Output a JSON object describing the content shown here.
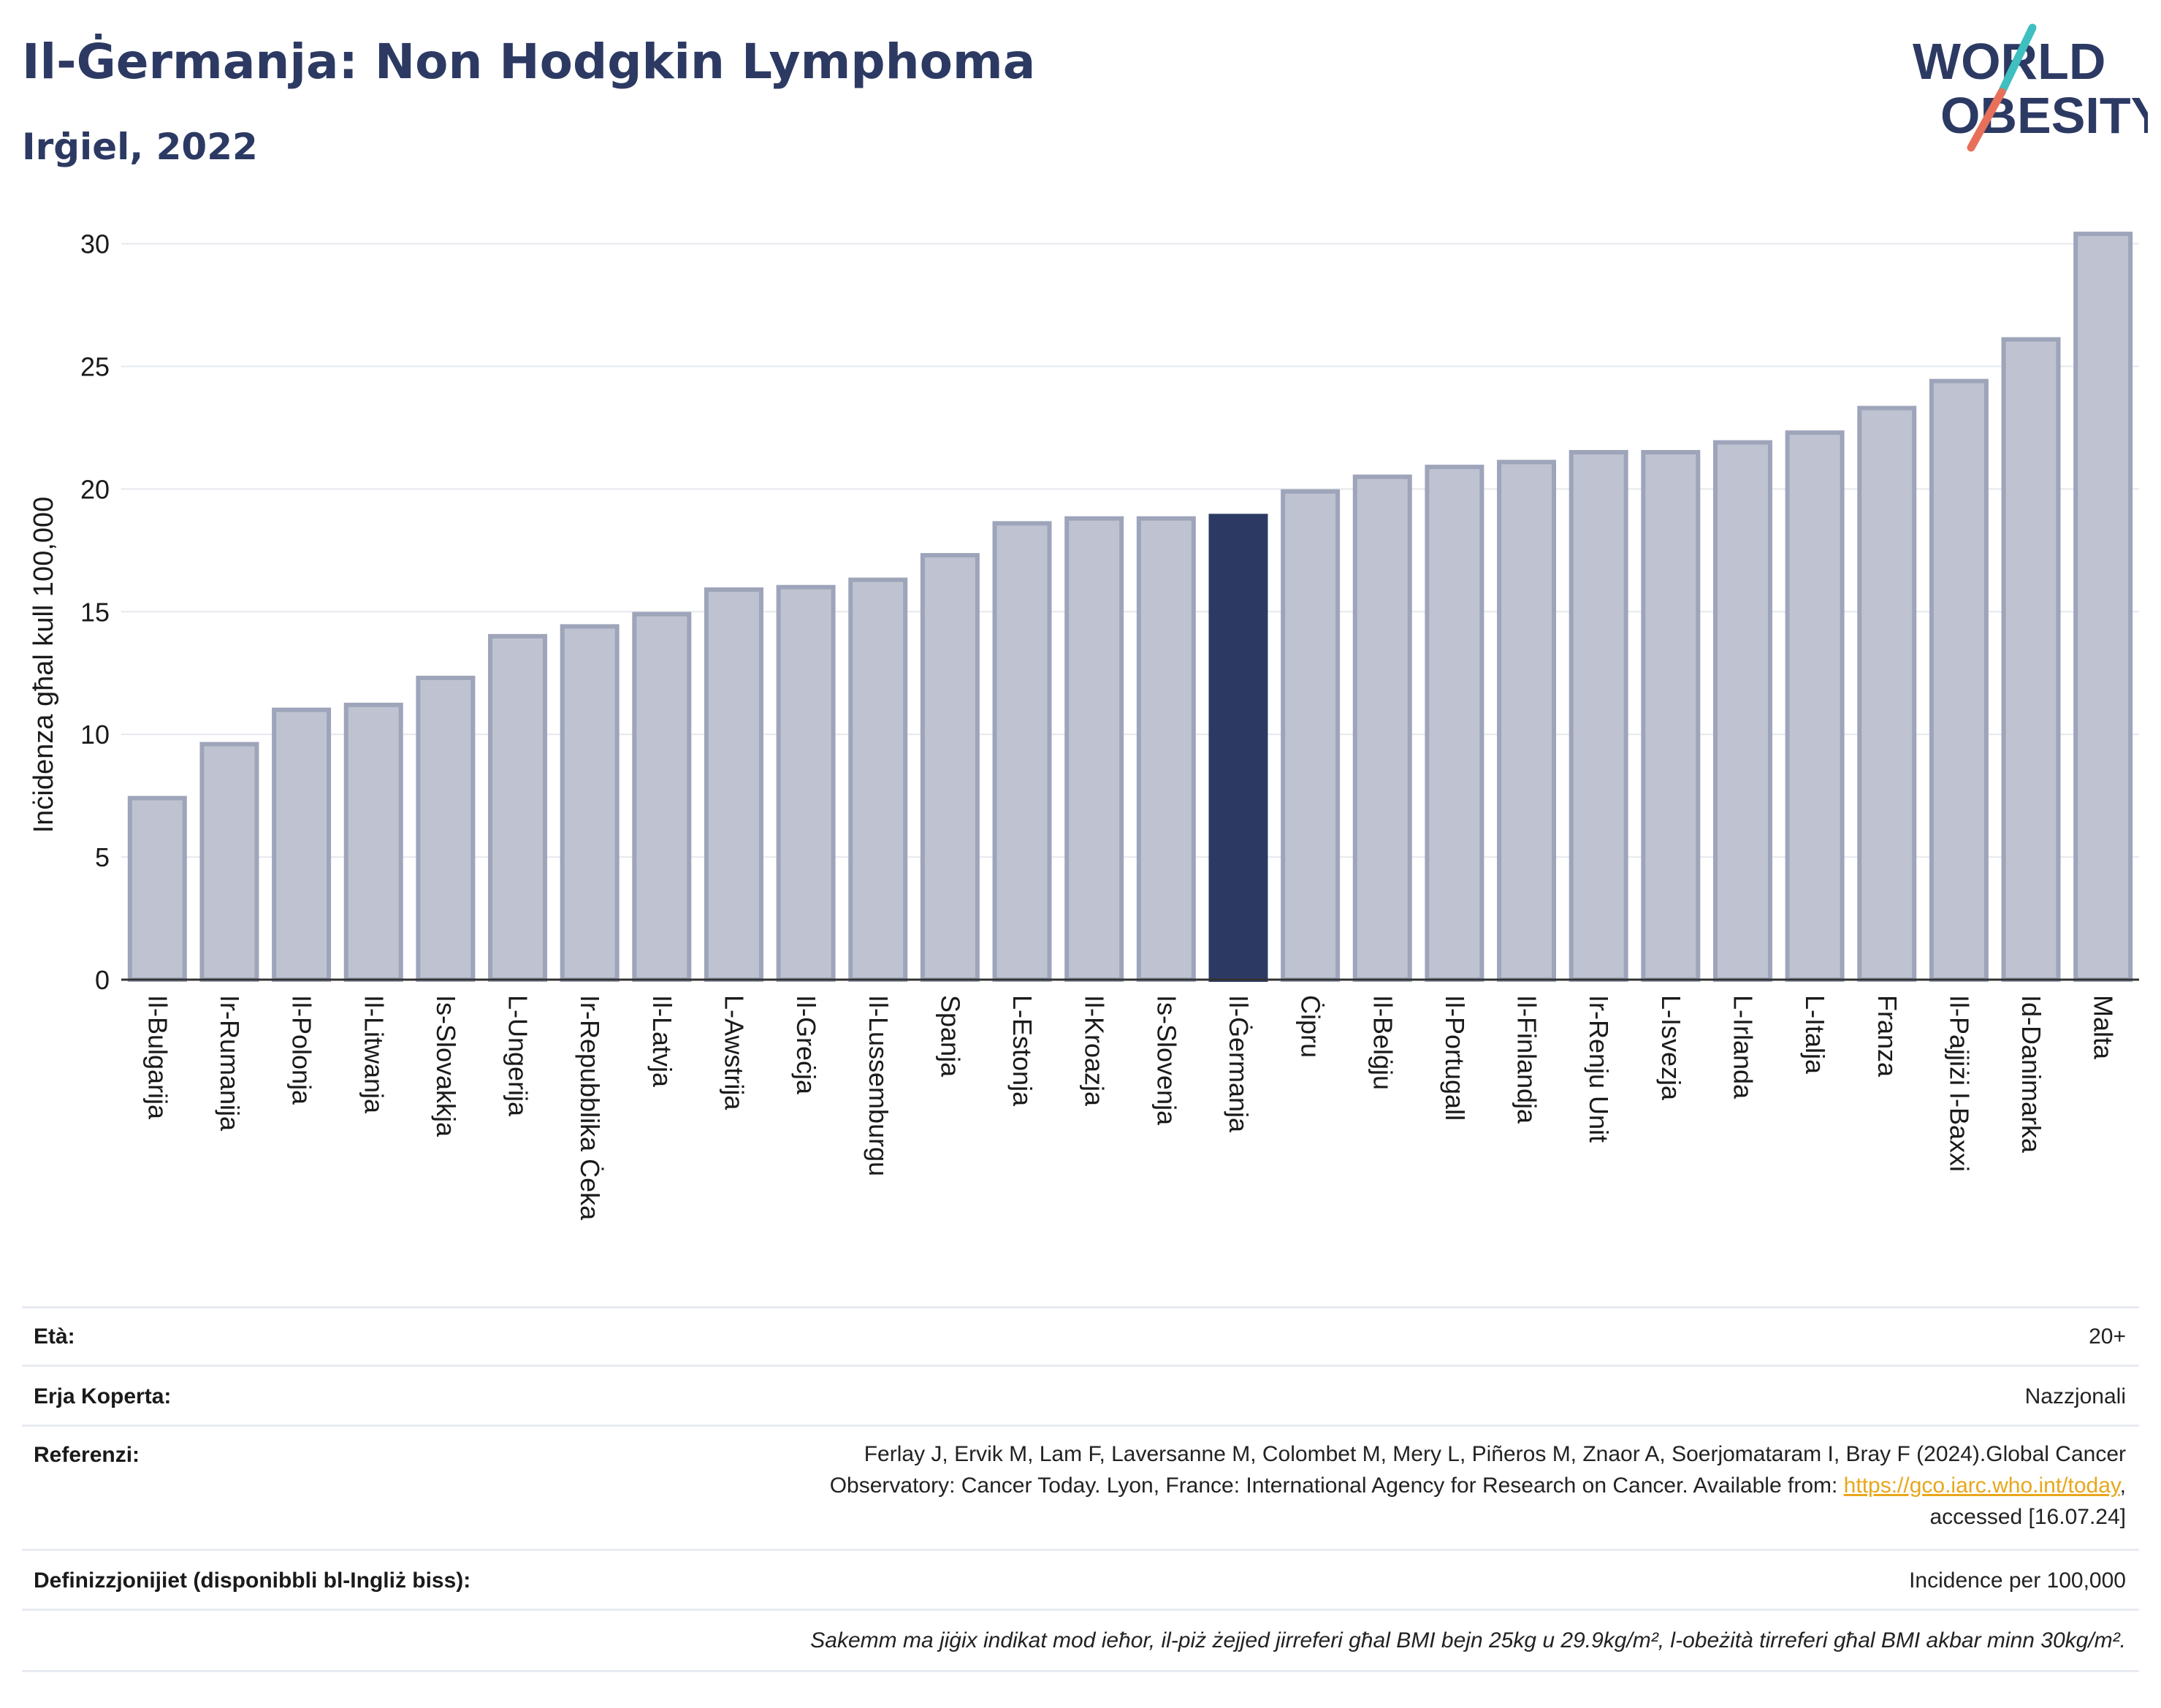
{
  "header": {
    "title": "Il-Ġermanja: Non Hodgkin Lymphoma",
    "subtitle": "Irġiel, 2022",
    "logo_line1": "WORLD",
    "logo_line2": "OBESITY"
  },
  "colors": {
    "bar": "#bfc3d1",
    "bar_stroke": "#9ea4b9",
    "highlight": "#2c3a63",
    "title": "#2c3a63",
    "grid": "#e6e8ee",
    "logo_teal": "#3fbfbf",
    "logo_coral": "#e8705a"
  },
  "chart_data": {
    "type": "bar",
    "ylabel": "Inċidenza għal kull 100,000",
    "ylim": [
      0,
      31
    ],
    "yticks": [
      0,
      5,
      10,
      15,
      20,
      25,
      30
    ],
    "grid": true,
    "highlight": "Il-Ġermanja",
    "categories": [
      "Il-Bulgarija",
      "Ir-Rumanija",
      "Il-Polonja",
      "Il-Litwanja",
      "Is-Slovakkja",
      "L-Ungerija",
      "Ir-Repubblika Ċeka",
      "Il-Latvja",
      "L-Awstrija",
      "Il-Greċja",
      "Il-Lussemburgu",
      "Spanja",
      "L-Estonja",
      "Il-Kroazja",
      "Is-Slovenja",
      "Il-Ġermanja",
      "Ċipru",
      "Il-Belġju",
      "Il-Portugall",
      "Il-Finlandja",
      "Ir-Renju Unit",
      "L-Isvezja",
      "L-Irlanda",
      "L-Italja",
      "Franza",
      "Il-Pajjiżi l-Baxxi",
      "Id-Danimarka",
      "Malta"
    ],
    "values": [
      7.4,
      9.6,
      11.0,
      11.2,
      12.3,
      14.0,
      14.4,
      14.9,
      15.9,
      16.0,
      16.3,
      17.3,
      18.6,
      18.8,
      18.8,
      18.9,
      19.9,
      20.5,
      20.9,
      21.1,
      21.5,
      21.5,
      21.9,
      22.3,
      23.3,
      24.4,
      26.1,
      30.4
    ]
  },
  "info": {
    "age_label": "Età:",
    "age_value": "20+",
    "coverage_label": "Erja Koperta:",
    "coverage_value": "Nazzjonali",
    "references_label": "Referenzi:",
    "references_line1": "Ferlay J, Ervik M, Lam F, Laversanne M, Colombet M, Mery L, Piñeros M, Znaor A, Soerjomataram I, Bray F (2024).Global Cancer",
    "references_line2_pre": "Observatory: Cancer Today. Lyon, France: International Agency for Research on Cancer. Available from: ",
    "references_link": "https://gco.iarc.who.int/today",
    "references_line2_post": ",",
    "references_line3": "accessed [16.07.24]",
    "definitions_label": "Definizzjonijiet (disponibbli bl-Ingliż biss):",
    "definitions_value": "Incidence per 100,000",
    "footnote": "Sakemm ma jiġix indikat mod ieħor, il-piż żejjed jirreferi għal BMI bejn 25kg u 29.9kg/m², l-obeżità tirreferi għal BMI akbar minn 30kg/m²."
  }
}
